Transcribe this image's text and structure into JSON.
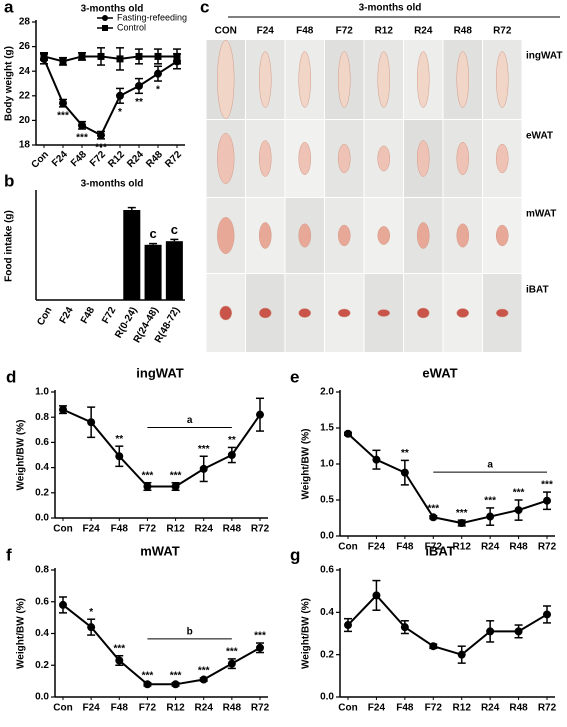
{
  "chart_data": [
    {
      "panel_label": "a",
      "type": "line",
      "title": "3-months old",
      "y_label": "Body weight (g)",
      "categories": [
        "Con",
        "F24",
        "F48",
        "F72",
        "R12",
        "R24",
        "R48",
        "R72"
      ],
      "ylim": [
        18,
        28
      ],
      "yticks": [
        18,
        20,
        22,
        24,
        26,
        28
      ],
      "legend": "upper right",
      "series": [
        {
          "name": "Fasting-refeeding",
          "color": "#000000",
          "marker": "circle",
          "values": [
            25.0,
            21.4,
            19.6,
            18.8,
            22.0,
            22.8,
            23.8,
            24.8
          ],
          "errors": [
            0.4,
            0.3,
            0.3,
            0.3,
            0.6,
            0.6,
            0.6,
            0.6
          ],
          "annotations": [
            null,
            "***",
            "***",
            "***",
            "*",
            "**",
            "*",
            null
          ]
        },
        {
          "name": "Control",
          "color": "#000000",
          "marker": "square",
          "values": [
            25.2,
            24.8,
            25.2,
            25.2,
            25.0,
            25.2,
            25.2,
            25.2
          ],
          "errors": [
            0.3,
            0.3,
            0.3,
            0.7,
            0.9,
            0.6,
            0.6,
            0.6
          ],
          "annotations": [
            null,
            null,
            null,
            null,
            null,
            null,
            null,
            null
          ]
        }
      ]
    },
    {
      "panel_label": "b",
      "type": "bar",
      "title": "3-months old",
      "y_label": "Food intake (g)",
      "categories": [
        "Con",
        "F24",
        "F48",
        "F72",
        "R(0-24)",
        "R(24-48)",
        "R(48-72)"
      ],
      "ylim": [
        0,
        9
      ],
      "color": "#000000",
      "values": [
        0,
        0,
        0,
        0,
        7.5,
        4.6,
        4.9
      ],
      "errors": [
        0,
        0,
        0,
        0,
        0.2,
        0.1,
        0.15
      ],
      "annotations": [
        null,
        null,
        null,
        null,
        null,
        "c",
        "c"
      ]
    },
    {
      "panel_label": "d",
      "type": "line",
      "title": "ingWAT",
      "y_label": "Weight/BW (%)",
      "categories": [
        "Con",
        "F24",
        "F48",
        "F72",
        "R12",
        "R24",
        "R48",
        "R72"
      ],
      "ylim": [
        0,
        1.0
      ],
      "yticks": [
        {
          "value": 0,
          "label": "0.0"
        },
        0.2,
        0.4,
        0.6,
        0.8,
        {
          "value": 1,
          "label": "1.0"
        }
      ],
      "bracket": {
        "label": "a",
        "span": [
          "F72",
          "R48"
        ]
      },
      "series": [
        {
          "name": "ingWAT",
          "color": "#000000",
          "marker": "circle",
          "values": [
            0.86,
            0.76,
            0.49,
            0.25,
            0.25,
            0.39,
            0.5,
            0.82
          ],
          "errors": [
            0.03,
            0.12,
            0.08,
            0.03,
            0.03,
            0.1,
            0.06,
            0.13
          ],
          "annotations": [
            null,
            null,
            "**",
            "***",
            "***",
            "***",
            "**",
            null
          ]
        }
      ]
    },
    {
      "panel_label": "e",
      "type": "line",
      "title": "eWAT",
      "y_label": "Weight/BW (%)",
      "categories": [
        "Con",
        "F24",
        "F48",
        "F72",
        "R12",
        "R24",
        "R48",
        "R72"
      ],
      "ylim": [
        0,
        2.0
      ],
      "yticks": [
        {
          "value": 0,
          "label": "0.0"
        },
        0.5,
        {
          "value": 1,
          "label": "1.0"
        },
        1.5,
        {
          "value": 2,
          "label": "2.0"
        }
      ],
      "bracket": {
        "label": "a",
        "span": [
          "F72",
          "R72"
        ]
      },
      "series": [
        {
          "name": "eWAT",
          "color": "#000000",
          "marker": "circle",
          "values": [
            1.42,
            1.06,
            0.88,
            0.26,
            0.18,
            0.27,
            0.36,
            0.49
          ],
          "errors": [
            0.02,
            0.13,
            0.17,
            0.02,
            0.04,
            0.12,
            0.14,
            0.12
          ],
          "annotations": [
            null,
            null,
            "**",
            "***",
            "***",
            "***",
            "***",
            "***"
          ]
        }
      ]
    },
    {
      "panel_label": "f",
      "type": "line",
      "title": "mWAT",
      "y_label": "Weight/BW (%)",
      "categories": [
        "Con",
        "F24",
        "F48",
        "F72",
        "R12",
        "R24",
        "R48",
        "R72"
      ],
      "ylim": [
        0,
        0.8
      ],
      "yticks": [
        {
          "value": 0,
          "label": "0.0"
        },
        0.2,
        0.4,
        0.6,
        0.8
      ],
      "bracket": {
        "label": "b",
        "span": [
          "F72",
          "R48"
        ]
      },
      "series": [
        {
          "name": "mWAT",
          "color": "#000000",
          "marker": "circle",
          "values": [
            0.58,
            0.44,
            0.23,
            0.08,
            0.08,
            0.11,
            0.21,
            0.31
          ],
          "errors": [
            0.05,
            0.05,
            0.03,
            0.01,
            0.01,
            0.01,
            0.03,
            0.03
          ],
          "annotations": [
            null,
            "*",
            "***",
            "***",
            "***",
            "***",
            "***",
            "***"
          ]
        }
      ]
    },
    {
      "panel_label": "g",
      "type": "line",
      "title": "iBAT",
      "y_label": "Weight/BW (%)",
      "categories": [
        "Con",
        "F24",
        "F48",
        "F72",
        "R12",
        "R24",
        "R48",
        "R72"
      ],
      "ylim": [
        0,
        0.6
      ],
      "yticks": [
        {
          "value": 0,
          "label": "0.0"
        },
        0.2,
        0.4,
        0.6
      ],
      "series": [
        {
          "name": "iBAT",
          "color": "#000000",
          "marker": "circle",
          "values": [
            0.34,
            0.48,
            0.33,
            0.24,
            0.2,
            0.31,
            0.31,
            0.39
          ],
          "errors": [
            0.03,
            0.07,
            0.03,
            0.01,
            0.04,
            0.05,
            0.03,
            0.04
          ],
          "annotations": [
            null,
            null,
            null,
            null,
            null,
            null,
            null,
            null
          ]
        }
      ]
    }
  ],
  "photo_panel": {
    "panel_label": "c",
    "title": "3-months old",
    "columns": [
      "CON",
      "F24",
      "F48",
      "F72",
      "R12",
      "R24",
      "R48",
      "R72"
    ],
    "rows": [
      "ingWAT",
      "eWAT",
      "mWAT",
      "iBAT"
    ]
  }
}
